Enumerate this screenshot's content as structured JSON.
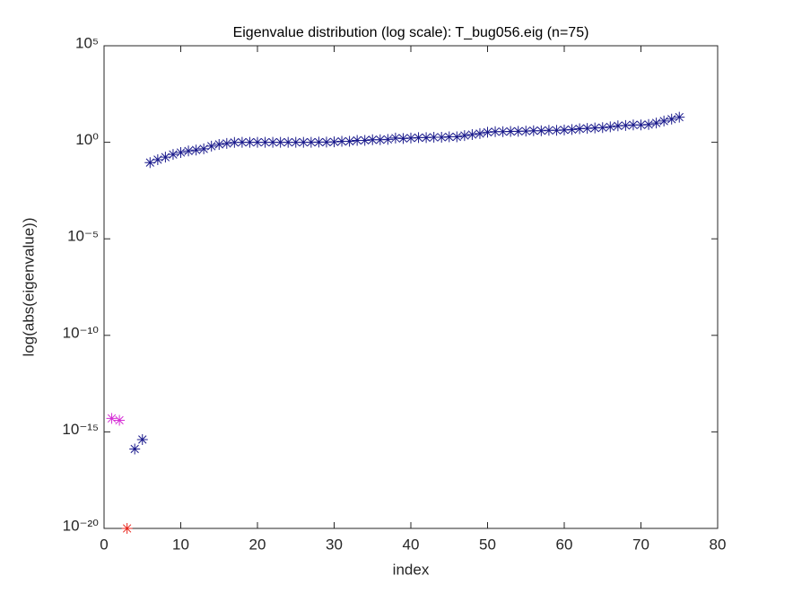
{
  "chart_data": {
    "type": "scatter",
    "title": "Eigenvalue distribution (log scale): T_bug056.eig (n=75)",
    "xlabel": "index",
    "ylabel": "log(abs(eigenvalue))",
    "xlim": [
      0,
      80
    ],
    "xticks": [
      0,
      10,
      20,
      30,
      40,
      50,
      60,
      70,
      80
    ],
    "ylim": [
      1e-20,
      100000
    ],
    "yscale": "log",
    "yticks": [
      {
        "value": 1e-20,
        "label": "10⁻²⁰"
      },
      {
        "value": 1e-15,
        "label": "10⁻¹⁵"
      },
      {
        "value": 1e-10,
        "label": "10⁻¹⁰"
      },
      {
        "value": 1e-05,
        "label": "10⁻⁵"
      },
      {
        "value": 1,
        "label": "10⁰"
      },
      {
        "value": 100000,
        "label": "10⁵"
      }
    ],
    "grid": false,
    "marker": "asterisk",
    "series": [
      {
        "color": "#d62fd6",
        "x": [
          1,
          2
        ],
        "values": [
          5e-15,
          4e-15
        ]
      },
      {
        "color": "#e8251c",
        "x": [
          3
        ],
        "values": [
          1e-20
        ]
      },
      {
        "color": "#1a1a8c",
        "x": [
          4,
          5,
          6,
          7,
          8,
          9,
          10,
          11,
          12,
          13,
          14,
          15,
          16,
          17,
          18,
          19,
          20,
          21,
          22,
          23,
          24,
          25,
          26,
          27,
          28,
          29,
          30,
          31,
          32,
          33,
          34,
          35,
          36,
          37,
          38,
          39,
          40,
          41,
          42,
          43,
          44,
          45,
          46,
          47,
          48,
          49,
          50,
          51,
          52,
          53,
          54,
          55,
          56,
          57,
          58,
          59,
          60,
          61,
          62,
          63,
          64,
          65,
          66,
          67,
          68,
          69,
          70,
          71,
          72,
          73,
          74,
          75
        ],
        "values": [
          1.3e-16,
          4e-16,
          0.089,
          0.126,
          0.17,
          0.234,
          0.295,
          0.355,
          0.398,
          0.457,
          0.63,
          0.776,
          0.87,
          0.98,
          1.0,
          1.0,
          1.0,
          1.0,
          1.0,
          1.0,
          1.0,
          1.0,
          1.0,
          1.0,
          1.02,
          1.02,
          1.05,
          1.12,
          1.12,
          1.26,
          1.26,
          1.35,
          1.35,
          1.41,
          1.66,
          1.58,
          1.66,
          1.74,
          1.74,
          1.82,
          1.82,
          1.91,
          1.91,
          2.24,
          2.51,
          2.82,
          3.31,
          3.55,
          3.55,
          3.63,
          3.72,
          3.8,
          3.98,
          3.98,
          4.17,
          4.17,
          4.37,
          4.57,
          5.01,
          5.25,
          5.5,
          5.75,
          6.31,
          7.08,
          7.41,
          7.94,
          7.94,
          8.32,
          10,
          12.6,
          15.8,
          20
        ]
      }
    ]
  }
}
